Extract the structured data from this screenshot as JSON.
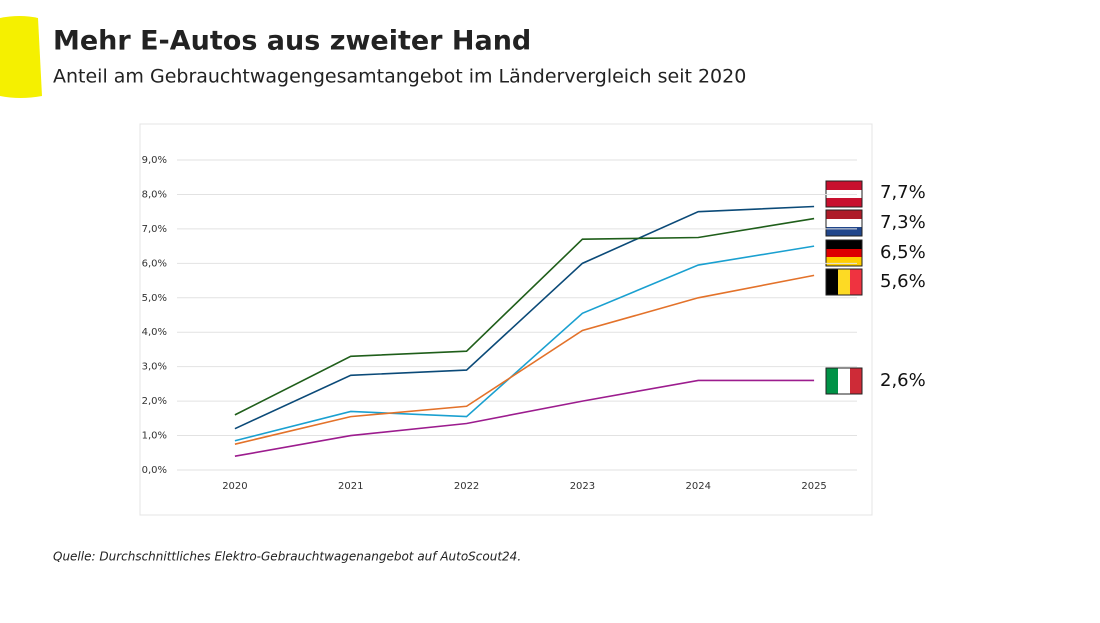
{
  "chart_data": {
    "type": "line",
    "title": "Mehr E-Autos aus zweiter Hand",
    "subtitle": "Anteil am Gebrauchtwagengesamtangebot im Ländervergleich seit 2020",
    "source": "Quelle: Durchschnittliches Elektro-Gebrauchtwagenangebot auf AutoScout24.",
    "categories": [
      "2020",
      "2021",
      "2022",
      "2023",
      "2024",
      "2025"
    ],
    "series": [
      {
        "color": "#0b4a78",
        "values": [
          1.2,
          2.75,
          2.9,
          6.0,
          7.5,
          7.65
        ],
        "value_labels": [
          null,
          null,
          null,
          null,
          null,
          "7,7%"
        ]
      },
      {
        "color": "#1f5e1a",
        "values": [
          1.6,
          3.3,
          3.45,
          6.7,
          6.75,
          7.3
        ],
        "value_labels": [
          null,
          null,
          null,
          null,
          null,
          "7,3%"
        ]
      },
      {
        "color": "#1aa0d0",
        "values": [
          0.85,
          1.7,
          1.55,
          4.55,
          5.95,
          6.5
        ],
        "value_labels": [
          null,
          null,
          null,
          null,
          null,
          "6,5%"
        ]
      },
      {
        "color": "#e3722a",
        "values": [
          0.75,
          1.55,
          1.85,
          4.05,
          5.0,
          5.65
        ],
        "value_labels": [
          null,
          null,
          null,
          null,
          null,
          "5,6%"
        ]
      },
      {
        "color": "#9c1c8e",
        "values": [
          0.4,
          1.0,
          1.35,
          2.0,
          2.6,
          2.6
        ],
        "value_labels": [
          null,
          null,
          null,
          null,
          null,
          "2,6%"
        ]
      }
    ],
    "ylim": [
      0,
      9
    ],
    "yticks": [
      {
        "value": 0,
        "label": "0,0%"
      },
      {
        "value": 1,
        "label": "1,0%"
      },
      {
        "value": 2,
        "label": "2,0%"
      },
      {
        "value": 3,
        "label": "3,0%"
      },
      {
        "value": 4,
        "label": "4,0%"
      },
      {
        "value": 5,
        "label": "5,0%"
      },
      {
        "value": 6,
        "label": "6,0%"
      },
      {
        "value": 7,
        "label": "7,0%"
      },
      {
        "value": 8,
        "label": "8,0%"
      },
      {
        "value": 9,
        "label": "9,0%"
      }
    ],
    "grid": true
  }
}
